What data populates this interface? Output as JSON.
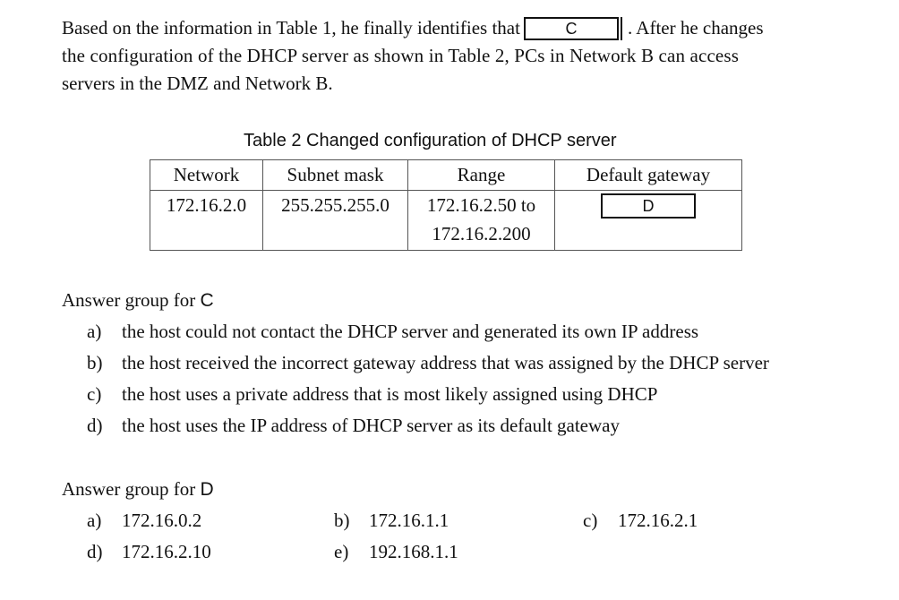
{
  "paragraph": {
    "line1_before": "Based on the information in Table 1, he finally identifies that",
    "blank_c": "C",
    "line1_after": ". After he changes",
    "line2": "the configuration of the DHCP server as shown in Table 2, PCs in Network B can access",
    "line3": "servers in the DMZ and Network B."
  },
  "table2": {
    "caption": "Table 2 Changed configuration of DHCP server",
    "headers": [
      "Network",
      "Subnet mask",
      "Range",
      "Default gateway"
    ],
    "row": {
      "network": "172.16.2.0",
      "subnet_mask": "255.255.255.0",
      "range_line1": "172.16.2.50 to",
      "range_line2": "172.16.2.200",
      "default_gateway_blank": "D"
    }
  },
  "answer_group_c": {
    "title_prefix": "Answer group for ",
    "title_letter": "C",
    "options": [
      {
        "label": "a)",
        "text": "the host could not contact the DHCP server and generated its own IP address"
      },
      {
        "label": "b)",
        "text": "the host received the incorrect gateway address that was assigned by the DHCP server"
      },
      {
        "label": "c)",
        "text": "the host uses a private address that is most likely assigned using DHCP"
      },
      {
        "label": "d)",
        "text": "the host uses the IP address of DHCP server as its default gateway"
      }
    ]
  },
  "answer_group_d": {
    "title_prefix": "Answer group for ",
    "title_letter": "D",
    "options": [
      {
        "label": "a)",
        "text": "172.16.0.2"
      },
      {
        "label": "b)",
        "text": "172.16.1.1"
      },
      {
        "label": "c)",
        "text": "172.16.2.1"
      },
      {
        "label": "d)",
        "text": "172.16.2.10"
      },
      {
        "label": "e)",
        "text": "192.168.1.1"
      }
    ]
  }
}
